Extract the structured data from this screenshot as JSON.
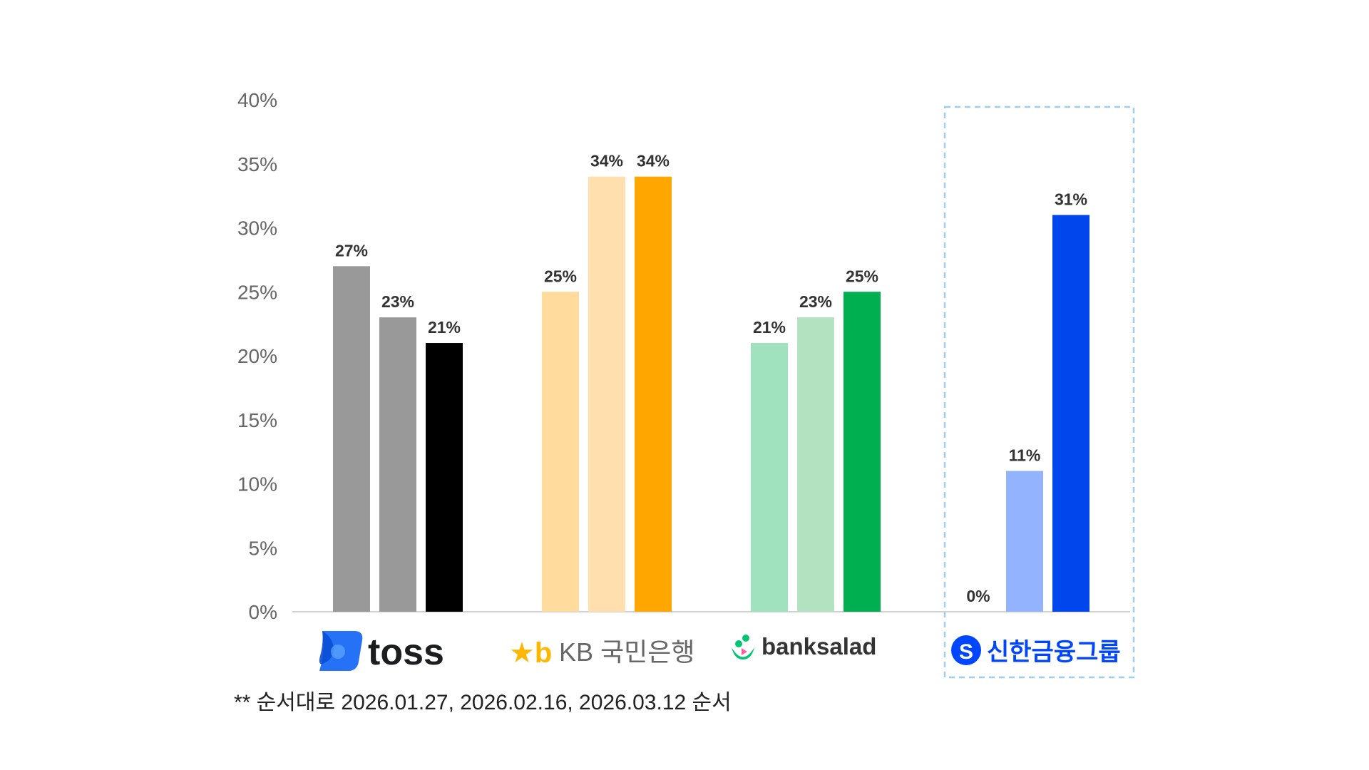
{
  "chart_data": {
    "type": "bar",
    "y_tick_labels": [
      "0%",
      "5%",
      "10%",
      "15%",
      "20%",
      "25%",
      "30%",
      "35%",
      "40%"
    ],
    "ylim": [
      0,
      40
    ],
    "grid": false,
    "categories": [
      "toss",
      "KB 국민은행",
      "banksalad",
      "신한금융그룹"
    ],
    "groups": [
      {
        "category": "toss",
        "values": [
          27,
          23,
          21
        ],
        "labels": [
          "27%",
          "23%",
          "21%"
        ],
        "colors": [
          "#999999",
          "#999999",
          "#000000"
        ]
      },
      {
        "category": "KB 국민은행",
        "values": [
          25,
          34,
          34
        ],
        "labels": [
          "25%",
          "34%",
          "34%"
        ],
        "colors": [
          "#ffdb9e",
          "#ffdfae",
          "#ffa600"
        ]
      },
      {
        "category": "banksalad",
        "values": [
          21,
          23,
          25
        ],
        "labels": [
          "21%",
          "23%",
          "25%"
        ],
        "colors": [
          "#9fe2bd",
          "#b2e2bf",
          "#00b050"
        ]
      },
      {
        "category": "신한금융그룹",
        "values": [
          0,
          11,
          31
        ],
        "labels": [
          "0%",
          "11%",
          "31%"
        ],
        "colors": [
          "#ffffff",
          "#94b3ff",
          "#0046ed"
        ]
      }
    ],
    "highlight_category": "신한금융그룹",
    "highlight_border_color": "#9ed0ee"
  },
  "logos": {
    "toss": {
      "text": "toss",
      "color": "#1b1d1f",
      "mark_color": "#2672f6"
    },
    "kb": {
      "mark": "★b",
      "text": "KB 국민은행",
      "mark_color": "#ffb700",
      "text_color": "#666666"
    },
    "banksalad": {
      "text": "banksalad",
      "color": "#333333",
      "mark_color": "#00c471"
    },
    "shinhan": {
      "mark": "S",
      "text": "신한금융그룹",
      "color": "#0046ff"
    }
  },
  "footnote": "** 순서대로 2026.01.27, 2026.02.16, 2026.03.12 순서"
}
